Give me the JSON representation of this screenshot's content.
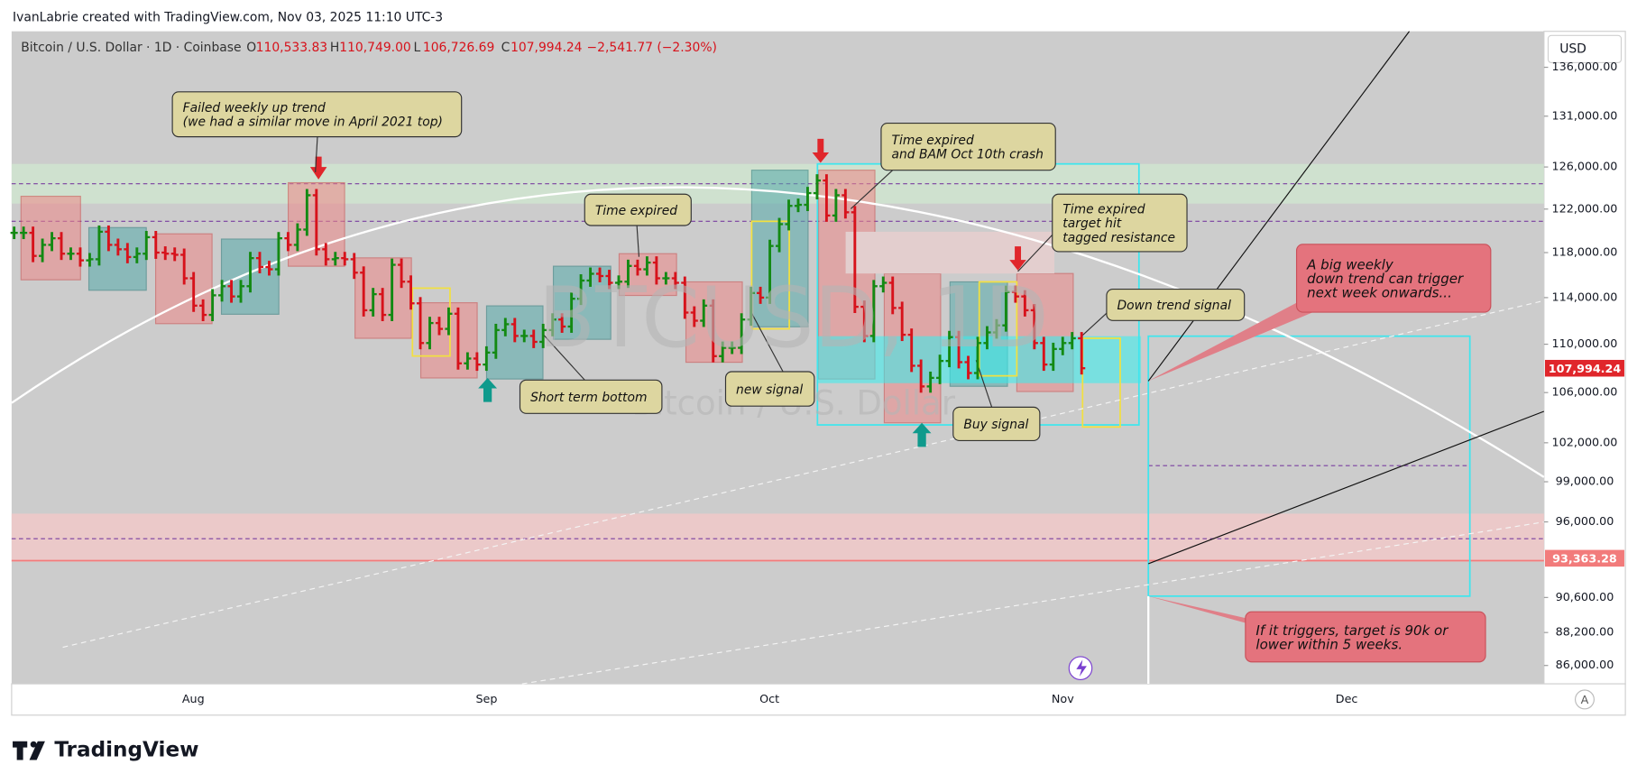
{
  "header": {
    "author_line": "IvanLabrie created with TradingView.com, Nov 03, 2025 11:10 UTC-3"
  },
  "legend": {
    "symbol": "Bitcoin / U.S. Dollar · 1D · Coinbase",
    "fields": [
      {
        "key": "O",
        "value": "110,533.83"
      },
      {
        "key": "H",
        "value": "110,749.00"
      },
      {
        "key": "L",
        "value": "106,726.69"
      },
      {
        "key": "C",
        "value": "107,994.24"
      }
    ],
    "change": "−2,541.77 (−2.30%)"
  },
  "currency": "USD",
  "watermark": {
    "symbol": "BTCUSD, 1D",
    "name": "Bitcoin / U.S. Dollar"
  },
  "price_axis": {
    "log": true,
    "range": [
      84800,
      139800
    ],
    "ticks": [
      {
        "value": 136000,
        "label": "136,000.00"
      },
      {
        "value": 131000,
        "label": "131,000.00"
      },
      {
        "value": 126000,
        "label": "126,000.00"
      },
      {
        "value": 122000,
        "label": "122,000.00"
      },
      {
        "value": 118000,
        "label": "118,000.00"
      },
      {
        "value": 114000,
        "label": "114,000.00"
      },
      {
        "value": 110000,
        "label": "110,000.00"
      },
      {
        "value": 106000,
        "label": "106,000.00"
      },
      {
        "value": 102000,
        "label": "102,000.00"
      },
      {
        "value": 99000,
        "label": "99,000.00"
      },
      {
        "value": 96000,
        "label": "96,000.00"
      },
      {
        "value": 90600,
        "label": "90,600.00"
      },
      {
        "value": 88200,
        "label": "88,200.00"
      },
      {
        "value": 86000,
        "label": "86,000.00"
      }
    ],
    "badges": [
      {
        "value": 107994.24,
        "label": "107,994.24",
        "color": "#e0262b"
      },
      {
        "value": 93363.28,
        "label": "93,363.28",
        "color": "#f27b7b"
      }
    ]
  },
  "time_axis": {
    "labels": [
      "Aug",
      "Sep",
      "Oct",
      "Nov",
      "Dec"
    ]
  },
  "closes": [
    119800,
    119800,
    117700,
    118700,
    119300,
    117900,
    117900,
    117300,
    117400,
    119900,
    118700,
    118300,
    117600,
    117900,
    119400,
    118000,
    117900,
    117800,
    115700,
    113300,
    112500,
    114200,
    115000,
    114100,
    115000,
    117500,
    116700,
    116500,
    119300,
    118700,
    120100,
    123300,
    118300,
    117400,
    117500,
    117400,
    116200,
    112900,
    114300,
    112500,
    116900,
    115400,
    113500,
    110100,
    111800,
    111300,
    112600,
    108400,
    108800,
    108300,
    109300,
    111200,
    111700,
    110700,
    110700,
    110200,
    111200,
    112100,
    111500,
    113900,
    115500,
    116100,
    115900,
    115300,
    115400,
    116800,
    116500,
    117100,
    115700,
    115700,
    115300,
    112700,
    112000,
    113300,
    109000,
    109700,
    109700,
    112100,
    114400,
    114000,
    118600,
    120600,
    122300,
    122400,
    123500,
    124700,
    121400,
    123300,
    121700,
    113200,
    110700,
    115000,
    115300,
    113100,
    110800,
    108200,
    106500,
    107200,
    108600,
    110600,
    108500,
    107600,
    110100,
    111000,
    111600,
    114500,
    114100,
    112900,
    110100,
    108300,
    109600,
    110100,
    110500,
    107994.24
  ],
  "up_color": "#138a13",
  "down_color": "#d7121b",
  "annotations": [
    {
      "kind": "note",
      "lines": [
        "Failed weekly up trend",
        "(we had a similar move in April 2021 top)"
      ]
    },
    {
      "kind": "note",
      "lines": [
        "Time expired"
      ]
    },
    {
      "kind": "note",
      "lines": [
        "Time expired",
        "and BAM Oct 10th crash"
      ]
    },
    {
      "kind": "note",
      "lines": [
        "Time expired",
        "target hit",
        "tagged resistance"
      ]
    },
    {
      "kind": "note",
      "lines": [
        "Down trend signal"
      ]
    },
    {
      "kind": "note",
      "lines": [
        "Short term bottom"
      ]
    },
    {
      "kind": "note",
      "lines": [
        "new signal"
      ]
    },
    {
      "kind": "note",
      "lines": [
        "Buy signal"
      ]
    },
    {
      "kind": "alert",
      "lines": [
        "A big weekly",
        "down trend can trigger",
        "next week onwards..."
      ]
    },
    {
      "kind": "alert",
      "lines": [
        "If it triggers, target is 90k or",
        "lower within 5 weeks."
      ]
    }
  ],
  "footer": {
    "brand": "TradingView",
    "scale_button": "A"
  }
}
